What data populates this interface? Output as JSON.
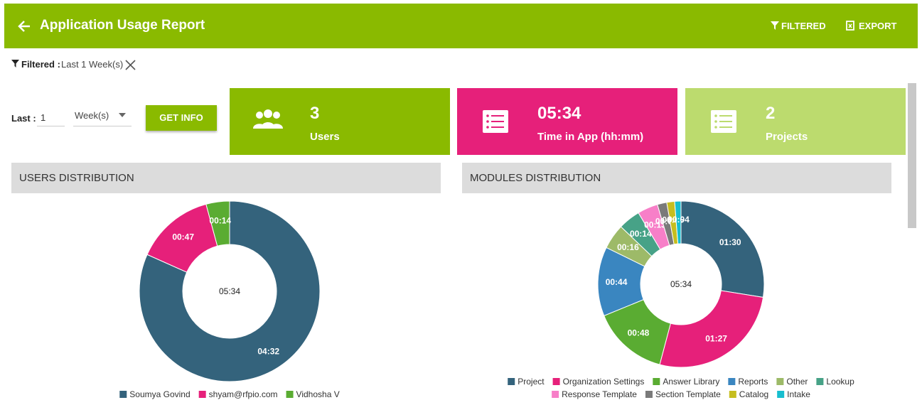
{
  "header": {
    "title": "Application Usage Report",
    "filter_button": "FILTERED",
    "export_button": "EXPORT"
  },
  "filter": {
    "label": "Filtered :",
    "value": "Last 1 Week(s)"
  },
  "controls": {
    "last_label": "Last :",
    "amount": "1",
    "unit": "Week(s)",
    "button": "GET INFO"
  },
  "stats": [
    {
      "value": 3,
      "label": "Users",
      "color": "#8aba00"
    },
    {
      "value": "05:34",
      "label": "Time in App (hh:mm)",
      "color": "#e6207a"
    },
    {
      "value": 2,
      "label": "Projects",
      "color": "#bcdb6e"
    }
  ],
  "chart_data": [
    {
      "type": "donut",
      "title": "USERS DISTRIBUTION",
      "center_label": "05:34",
      "categories": [
        "Soumya Govind",
        "shyam@rfpio.com",
        "Vidhosha V"
      ],
      "values": [
        272,
        47,
        14
      ],
      "value_labels": [
        "04:32",
        "00:47",
        "00:14"
      ],
      "colors": [
        "#34637c",
        "#e6207a",
        "#5aac32"
      ]
    },
    {
      "type": "donut",
      "title": "MODULES DISTRIBUTION",
      "center_label": "05:34",
      "categories": [
        "Project",
        "Organization Settings",
        "Answer Library",
        "Reports",
        "Other",
        "Lookup",
        "Response Template",
        "Section Template",
        "Catalog",
        "Intake"
      ],
      "values": [
        90,
        87,
        48,
        44,
        16,
        14,
        13,
        6,
        5,
        4
      ],
      "value_labels": [
        "01:30",
        "01:27",
        "00:48",
        "00:44",
        "00:16",
        "00:14",
        "00:13",
        "00:06",
        "00:05",
        "00:04"
      ],
      "colors": [
        "#34637c",
        "#e6207a",
        "#5aac32",
        "#3a86c0",
        "#9dba68",
        "#47a287",
        "#f77fc8",
        "#7a7a7a",
        "#c6be1f",
        "#17becf"
      ]
    }
  ]
}
